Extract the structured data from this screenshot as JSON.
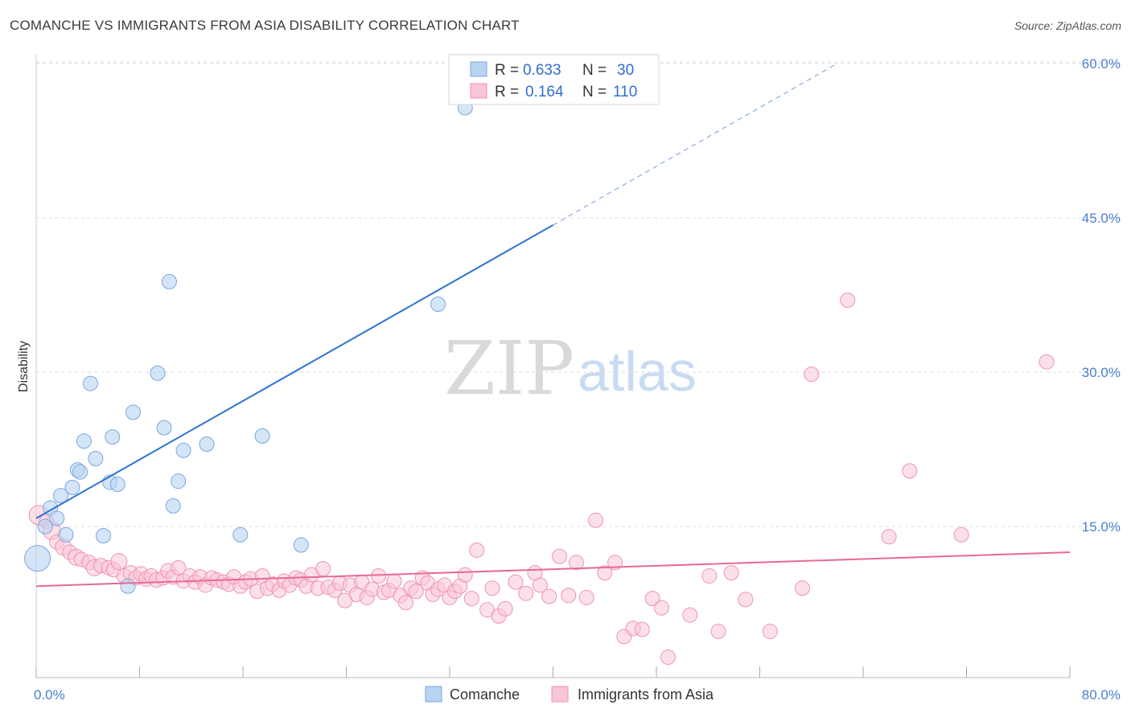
{
  "header": {
    "title": "COMANCHE VS IMMIGRANTS FROM ASIA DISABILITY CORRELATION CHART",
    "source": "Source: ZipAtlas.com"
  },
  "legend": {
    "series1": {
      "r_label": "R =",
      "r_value": "0.633",
      "n_label": "N =",
      "n_value": "30"
    },
    "series2": {
      "r_label": "R =",
      "r_value": "0.164",
      "n_label": "N =",
      "n_value": "110"
    }
  },
  "watermark": {
    "zip": "ZIP",
    "atlas": "atlas"
  },
  "colors": {
    "comanche_fill": "#b9d3f3",
    "comanche_stroke": "#7aa6e0",
    "comanche_line": "#2f72d2",
    "asia_fill": "#f9c6d6",
    "asia_stroke": "#ef93b0",
    "asia_line": "#e8689a",
    "grid": "#dddddd",
    "axis_label": "#4a7fd0"
  },
  "chart_data": {
    "type": "scatter",
    "title": "COMANCHE VS IMMIGRANTS FROM ASIA DISABILITY CORRELATION CHART",
    "xlabel": "",
    "ylabel": "Disability",
    "xlim": [
      0,
      80
    ],
    "ylim": [
      0,
      62
    ],
    "x_tick_labels": [
      "0.0%",
      "80.0%"
    ],
    "y_ticks": [
      15,
      30,
      45,
      60
    ],
    "y_tick_labels": [
      "15.0%",
      "30.0%",
      "45.0%",
      "60.0%"
    ],
    "grid": "horizontal dashed",
    "legend_position": "top-center",
    "series": [
      {
        "name": "Comanche",
        "r": 0.633,
        "n": 30,
        "trend": {
          "x0": 0,
          "y0": 15.8,
          "x1": 40,
          "y1": 44.3,
          "dashed_to_x": 62,
          "dashed_to_y": 60
        },
        "points": [
          [
            0.1,
            11.9,
            16
          ],
          [
            0.7,
            15.0,
            9
          ],
          [
            1.1,
            16.8,
            9
          ],
          [
            1.6,
            15.8,
            9
          ],
          [
            2.3,
            14.2,
            9
          ],
          [
            1.9,
            18.0,
            9
          ],
          [
            2.8,
            18.8,
            9
          ],
          [
            3.2,
            20.5,
            9
          ],
          [
            3.4,
            20.3,
            9
          ],
          [
            3.7,
            23.3,
            9
          ],
          [
            4.6,
            21.6,
            9
          ],
          [
            4.2,
            28.9,
            9
          ],
          [
            5.2,
            14.1,
            9
          ],
          [
            5.7,
            19.3,
            9
          ],
          [
            5.9,
            23.7,
            9
          ],
          [
            6.3,
            19.1,
            9
          ],
          [
            7.5,
            26.1,
            9
          ],
          [
            7.1,
            9.2,
            9
          ],
          [
            9.4,
            29.9,
            9
          ],
          [
            9.9,
            24.6,
            9
          ],
          [
            10.3,
            38.8,
            9
          ],
          [
            10.6,
            17.0,
            9
          ],
          [
            11.0,
            19.4,
            9
          ],
          [
            11.4,
            22.4,
            9
          ],
          [
            13.2,
            23.0,
            9
          ],
          [
            15.8,
            14.2,
            9
          ],
          [
            17.5,
            23.8,
            9
          ],
          [
            20.5,
            13.2,
            9
          ],
          [
            31.1,
            36.6,
            9
          ],
          [
            33.2,
            55.7,
            9
          ]
        ]
      },
      {
        "name": "Immigrants from Asia",
        "r": 0.164,
        "n": 110,
        "trend": {
          "x0": 0,
          "y0": 9.2,
          "x1": 80,
          "y1": 12.5
        },
        "points": [
          [
            0.2,
            16.1,
            12
          ],
          [
            0.8,
            15.5,
            9
          ],
          [
            1.2,
            14.6,
            11
          ],
          [
            1.6,
            13.5,
            9
          ],
          [
            2.1,
            13.0,
            10
          ],
          [
            2.6,
            12.5,
            9
          ],
          [
            3.1,
            12.0,
            10
          ],
          [
            3.5,
            11.8,
            9
          ],
          [
            4.1,
            11.5,
            9
          ],
          [
            4.5,
            11.0,
            10
          ],
          [
            5.0,
            11.2,
            9
          ],
          [
            5.6,
            11.0,
            9
          ],
          [
            6.0,
            10.8,
            9
          ],
          [
            6.4,
            11.6,
            10
          ],
          [
            6.8,
            10.2,
            9
          ],
          [
            7.3,
            10.5,
            9
          ],
          [
            7.7,
            10.0,
            9
          ],
          [
            8.1,
            10.4,
            9
          ],
          [
            8.5,
            9.9,
            9
          ],
          [
            8.9,
            10.2,
            9
          ],
          [
            9.3,
            9.8,
            9
          ],
          [
            9.8,
            10.0,
            9
          ],
          [
            10.2,
            10.7,
            9
          ],
          [
            10.6,
            10.1,
            9
          ],
          [
            11.0,
            11.0,
            9
          ],
          [
            11.4,
            9.7,
            9
          ],
          [
            11.9,
            10.2,
            9
          ],
          [
            12.3,
            9.6,
            9
          ],
          [
            12.7,
            10.1,
            9
          ],
          [
            13.1,
            9.3,
            9
          ],
          [
            13.6,
            10.0,
            9
          ],
          [
            14.0,
            9.8,
            9
          ],
          [
            14.5,
            9.6,
            9
          ],
          [
            14.9,
            9.4,
            9
          ],
          [
            15.3,
            10.1,
            9
          ],
          [
            15.8,
            9.2,
            9
          ],
          [
            16.2,
            9.6,
            9
          ],
          [
            16.6,
            9.9,
            9
          ],
          [
            17.1,
            8.7,
            9
          ],
          [
            17.5,
            10.2,
            9
          ],
          [
            17.9,
            9.0,
            9
          ],
          [
            18.3,
            9.4,
            9
          ],
          [
            18.8,
            8.8,
            9
          ],
          [
            19.2,
            9.7,
            9
          ],
          [
            19.6,
            9.3,
            9
          ],
          [
            20.1,
            10.0,
            9
          ],
          [
            20.5,
            9.8,
            9
          ],
          [
            20.9,
            9.2,
            9
          ],
          [
            21.3,
            10.3,
            9
          ],
          [
            21.8,
            9.0,
            9
          ],
          [
            22.2,
            10.9,
            9
          ],
          [
            22.6,
            9.1,
            9
          ],
          [
            23.1,
            8.8,
            9
          ],
          [
            23.5,
            9.5,
            9
          ],
          [
            23.9,
            7.8,
            9
          ],
          [
            24.3,
            9.3,
            9
          ],
          [
            24.8,
            8.4,
            9
          ],
          [
            25.2,
            9.6,
            9
          ],
          [
            25.6,
            8.1,
            9
          ],
          [
            26.0,
            8.9,
            9
          ],
          [
            26.5,
            10.2,
            9
          ],
          [
            26.9,
            8.6,
            9
          ],
          [
            27.3,
            8.8,
            9
          ],
          [
            27.7,
            9.7,
            9
          ],
          [
            28.2,
            8.3,
            9
          ],
          [
            28.6,
            7.6,
            9
          ],
          [
            29.0,
            9.0,
            9
          ],
          [
            29.4,
            8.7,
            9
          ],
          [
            29.9,
            10.0,
            9
          ],
          [
            30.3,
            9.5,
            9
          ],
          [
            30.7,
            8.4,
            9
          ],
          [
            31.1,
            8.9,
            9
          ],
          [
            31.6,
            9.3,
            9
          ],
          [
            32.0,
            8.1,
            9
          ],
          [
            32.4,
            8.7,
            9
          ],
          [
            32.8,
            9.2,
            9
          ],
          [
            33.2,
            10.3,
            9
          ],
          [
            33.7,
            8.0,
            9
          ],
          [
            34.1,
            12.7,
            9
          ],
          [
            34.9,
            6.9,
            9
          ],
          [
            35.3,
            9.0,
            9
          ],
          [
            35.8,
            6.3,
            9
          ],
          [
            36.3,
            7.0,
            9
          ],
          [
            37.1,
            9.6,
            9
          ],
          [
            37.9,
            8.5,
            9
          ],
          [
            38.6,
            10.5,
            9
          ],
          [
            39.0,
            9.3,
            9
          ],
          [
            39.7,
            8.2,
            9
          ],
          [
            40.5,
            12.1,
            9
          ],
          [
            41.2,
            8.3,
            9
          ],
          [
            41.8,
            11.5,
            9
          ],
          [
            42.6,
            8.1,
            9
          ],
          [
            43.3,
            15.6,
            9
          ],
          [
            44.0,
            10.5,
            9
          ],
          [
            44.8,
            11.5,
            9
          ],
          [
            45.5,
            4.3,
            9
          ],
          [
            46.2,
            5.1,
            9
          ],
          [
            46.9,
            5.0,
            9
          ],
          [
            47.7,
            8.0,
            9
          ],
          [
            48.4,
            7.1,
            9
          ],
          [
            48.9,
            2.3,
            9
          ],
          [
            50.6,
            6.4,
            9
          ],
          [
            52.1,
            10.2,
            9
          ],
          [
            52.8,
            4.8,
            9
          ],
          [
            53.8,
            10.5,
            9
          ],
          [
            54.9,
            7.9,
            9
          ],
          [
            56.8,
            4.8,
            9
          ],
          [
            59.3,
            9.0,
            9
          ],
          [
            60.0,
            29.8,
            9
          ],
          [
            62.8,
            37.0,
            9
          ],
          [
            66.0,
            14.0,
            9
          ],
          [
            67.6,
            20.4,
            9
          ],
          [
            71.6,
            14.2,
            9
          ],
          [
            78.2,
            31.0,
            9
          ]
        ]
      }
    ]
  },
  "bottom_legend": [
    "Comanche",
    "Immigrants from Asia"
  ]
}
